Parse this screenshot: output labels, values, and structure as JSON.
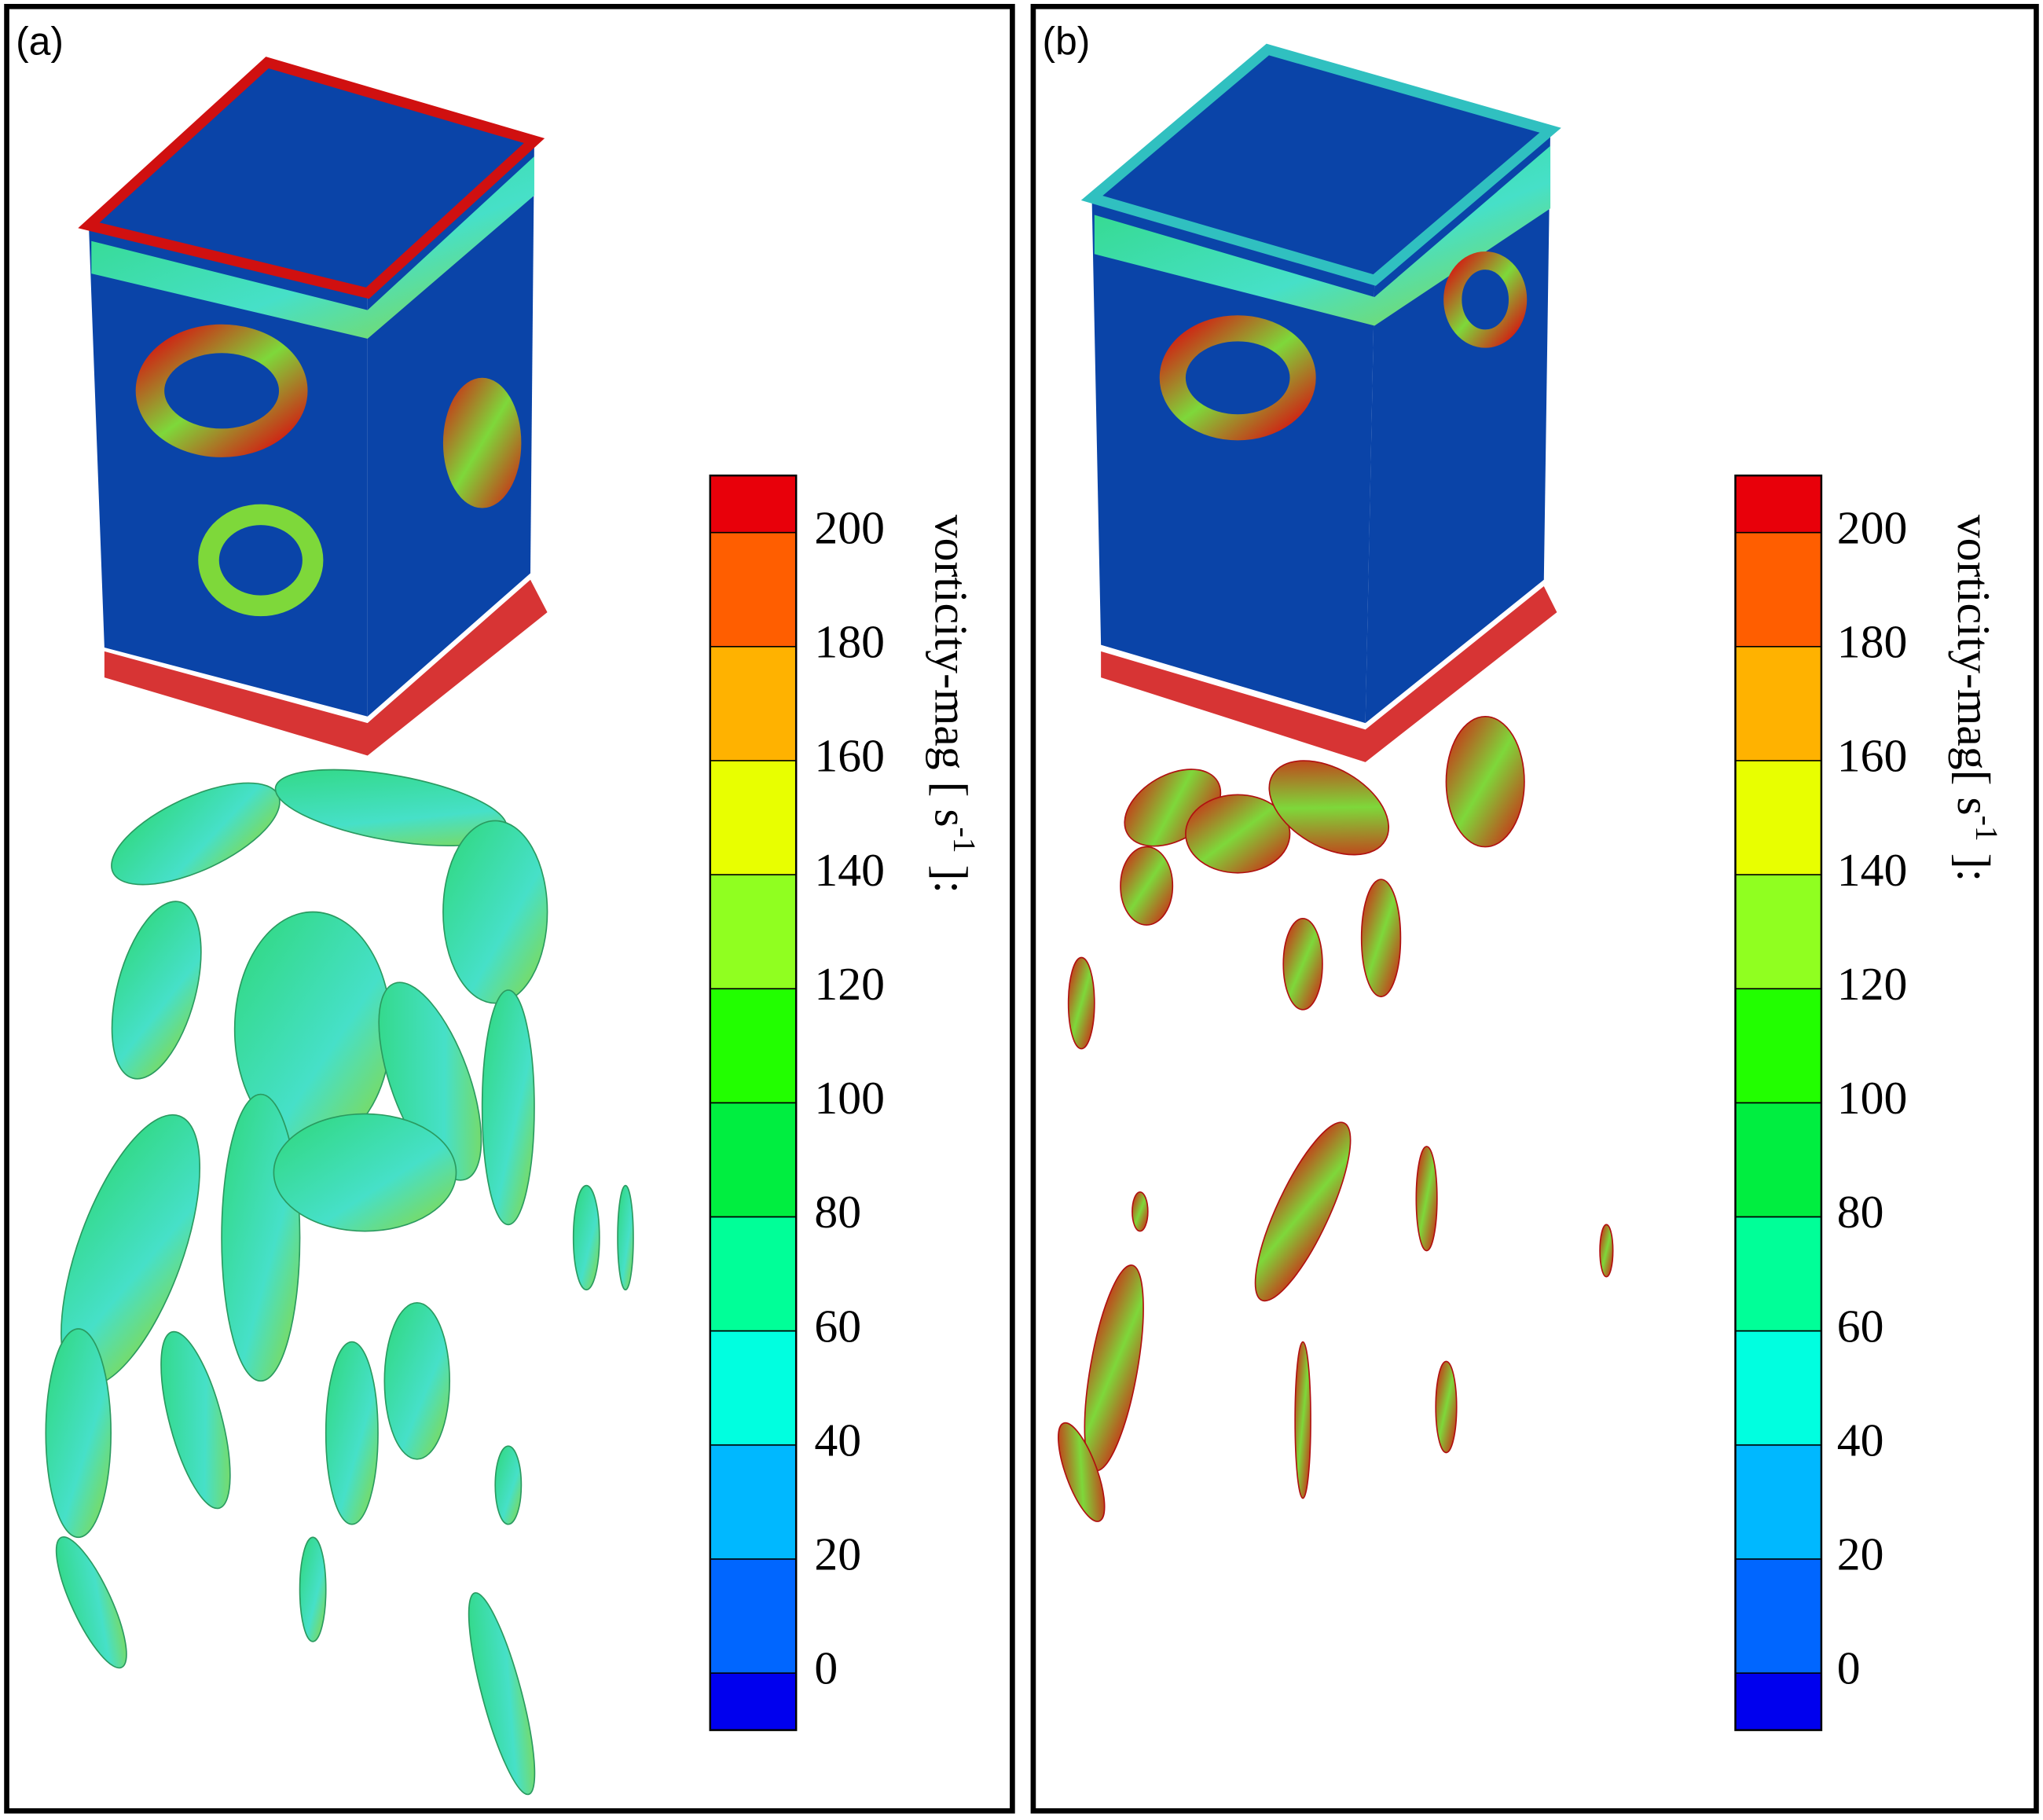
{
  "panels": [
    {
      "label": "(a)",
      "colorbar": {
        "title": "vorticity-mag [ s",
        "title_sup": "-1",
        "title_end": " ]:",
        "lim": [
          -10,
          210
        ],
        "ticks": [
          0,
          20,
          40,
          60,
          80,
          100,
          120,
          140,
          160,
          180,
          200
        ],
        "colors": [
          "#e8000a",
          "#ff5e00",
          "#ffb200",
          "#e8ff00",
          "#90ff20",
          "#22ff00",
          "#00ee40",
          "#00ff98",
          "#00ffe0",
          "#00b8ff",
          "#0066ff",
          "#0000ee"
        ]
      }
    },
    {
      "label": "(b)",
      "colorbar": {
        "title": "vorticity-mag[ s",
        "title_sup": "-1",
        "title_end": " ]:",
        "lim": [
          -10,
          210
        ],
        "ticks": [
          0,
          20,
          40,
          60,
          80,
          100,
          120,
          140,
          160,
          180,
          200
        ],
        "colors": [
          "#e8000a",
          "#ff5e00",
          "#ffb200",
          "#e8ff00",
          "#90ff20",
          "#22ff00",
          "#00ee40",
          "#00ff98",
          "#00ffe0",
          "#00b8ff",
          "#0066ff",
          "#0000ee"
        ]
      }
    }
  ]
}
